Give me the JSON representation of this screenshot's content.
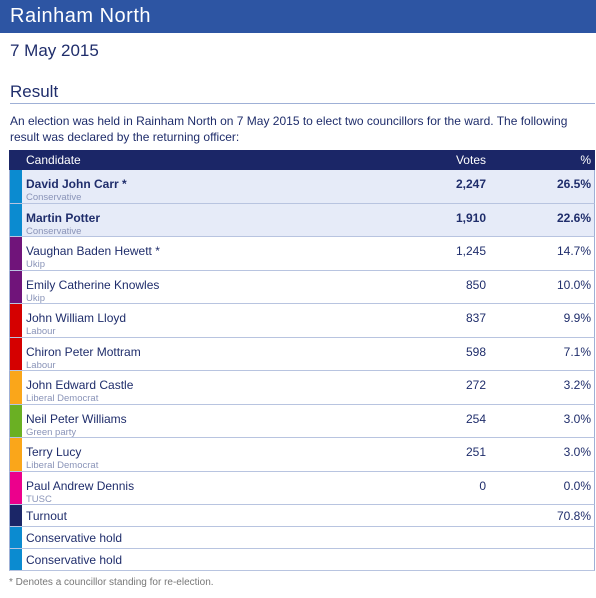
{
  "header": {
    "title": "Rainham North",
    "date": "7 May 2015"
  },
  "section": {
    "title": "Result",
    "intro": "An election was held in Rainham North on 7 May 2015 to elect two councillors for the ward. The following result was declared by the returning officer:"
  },
  "table": {
    "columns": [
      "Candidate",
      "Votes",
      "%"
    ],
    "rows": [
      {
        "name": "David John Carr *",
        "party": "Conservative",
        "votes": "2,247",
        "percent": "26.5%",
        "color": "#0b8bd0",
        "elected": true
      },
      {
        "name": "Martin Potter",
        "party": "Conservative",
        "votes": "1,910",
        "percent": "22.6%",
        "color": "#0b8bd0",
        "elected": true
      },
      {
        "name": "Vaughan Baden Hewett *",
        "party": "Ukip",
        "votes": "1,245",
        "percent": "14.7%",
        "color": "#70147a",
        "elected": false
      },
      {
        "name": "Emily Catherine Knowles",
        "party": "Ukip",
        "votes": "850",
        "percent": "10.0%",
        "color": "#70147a",
        "elected": false
      },
      {
        "name": "John William Lloyd",
        "party": "Labour",
        "votes": "837",
        "percent": "9.9%",
        "color": "#d50000",
        "elected": false
      },
      {
        "name": "Chiron Peter Mottram",
        "party": "Labour",
        "votes": "598",
        "percent": "7.1%",
        "color": "#d50000",
        "elected": false
      },
      {
        "name": "John Edward Castle",
        "party": "Liberal Democrat",
        "votes": "272",
        "percent": "3.2%",
        "color": "#faa61a",
        "elected": false
      },
      {
        "name": "Neil Peter Williams",
        "party": "Green party",
        "votes": "254",
        "percent": "3.0%",
        "color": "#6ab023",
        "elected": false
      },
      {
        "name": "Terry Lucy",
        "party": "Liberal Democrat",
        "votes": "251",
        "percent": "3.0%",
        "color": "#faa61a",
        "elected": false
      },
      {
        "name": "Paul Andrew Dennis",
        "party": "TUSC",
        "votes": "0",
        "percent": "0.0%",
        "color": "#ec008c",
        "elected": false
      }
    ],
    "turnout": {
      "label": "Turnout",
      "percent": "70.8%",
      "color": "#1b2667"
    },
    "results": [
      {
        "text": "Conservative hold",
        "color": "#0b8bd0"
      },
      {
        "text": "Conservative hold",
        "color": "#0b8bd0"
      }
    ]
  },
  "footnote": "* Denotes a councillor standing for re-election."
}
